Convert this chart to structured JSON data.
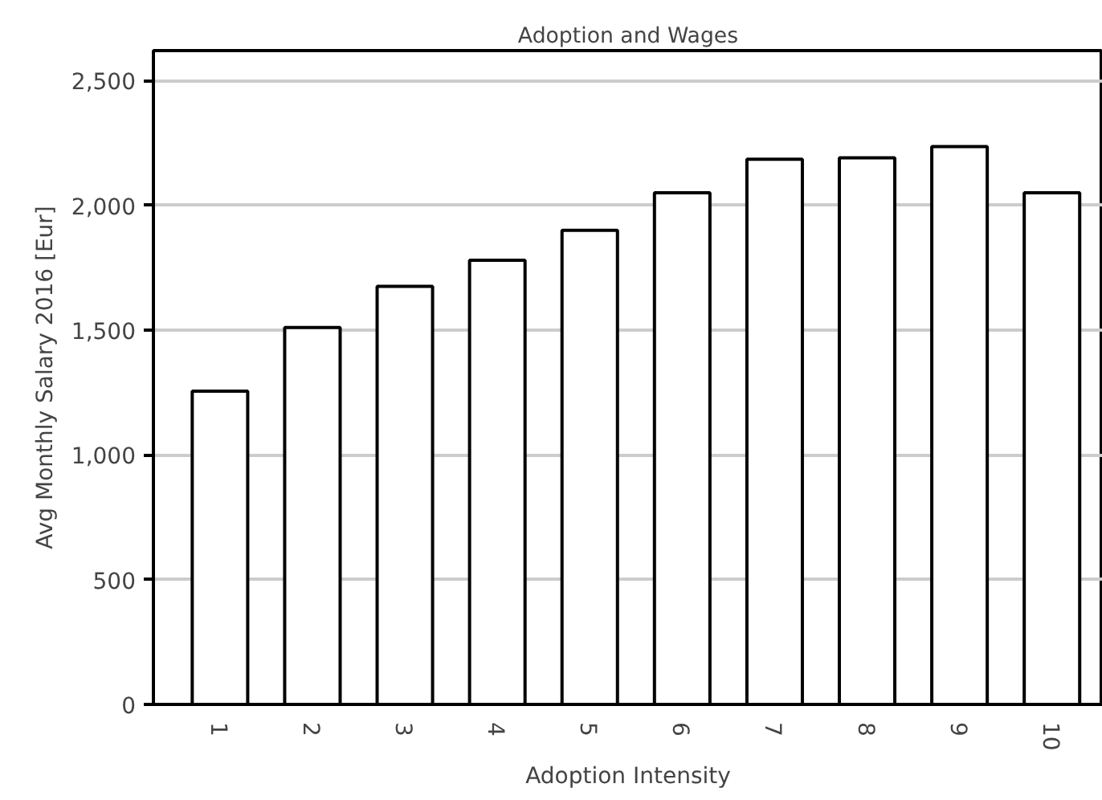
{
  "chart_data": {
    "type": "bar",
    "title": "Adoption and Wages",
    "xlabel": "Adoption Intensity",
    "ylabel": "Avg Monthly Salary 2016 [Eur]",
    "categories": [
      "1",
      "2",
      "3",
      "4",
      "5",
      "6",
      "7",
      "8",
      "9",
      "10"
    ],
    "values": [
      1255,
      1510,
      1675,
      1780,
      1900,
      2050,
      2185,
      2190,
      2235,
      2050
    ],
    "color": "#ffffff",
    "ylim": [
      0,
      2620
    ],
    "yticks": [
      0,
      {
        "value": 500,
        "label": "500"
      },
      {
        "value": 1000,
        "label": "1,000"
      },
      {
        "value": 1500,
        "label": "1,500"
      },
      {
        "value": 2000,
        "label": "2,000"
      },
      {
        "value": 2500,
        "label": "2,500"
      }
    ],
    "grid": "y"
  }
}
